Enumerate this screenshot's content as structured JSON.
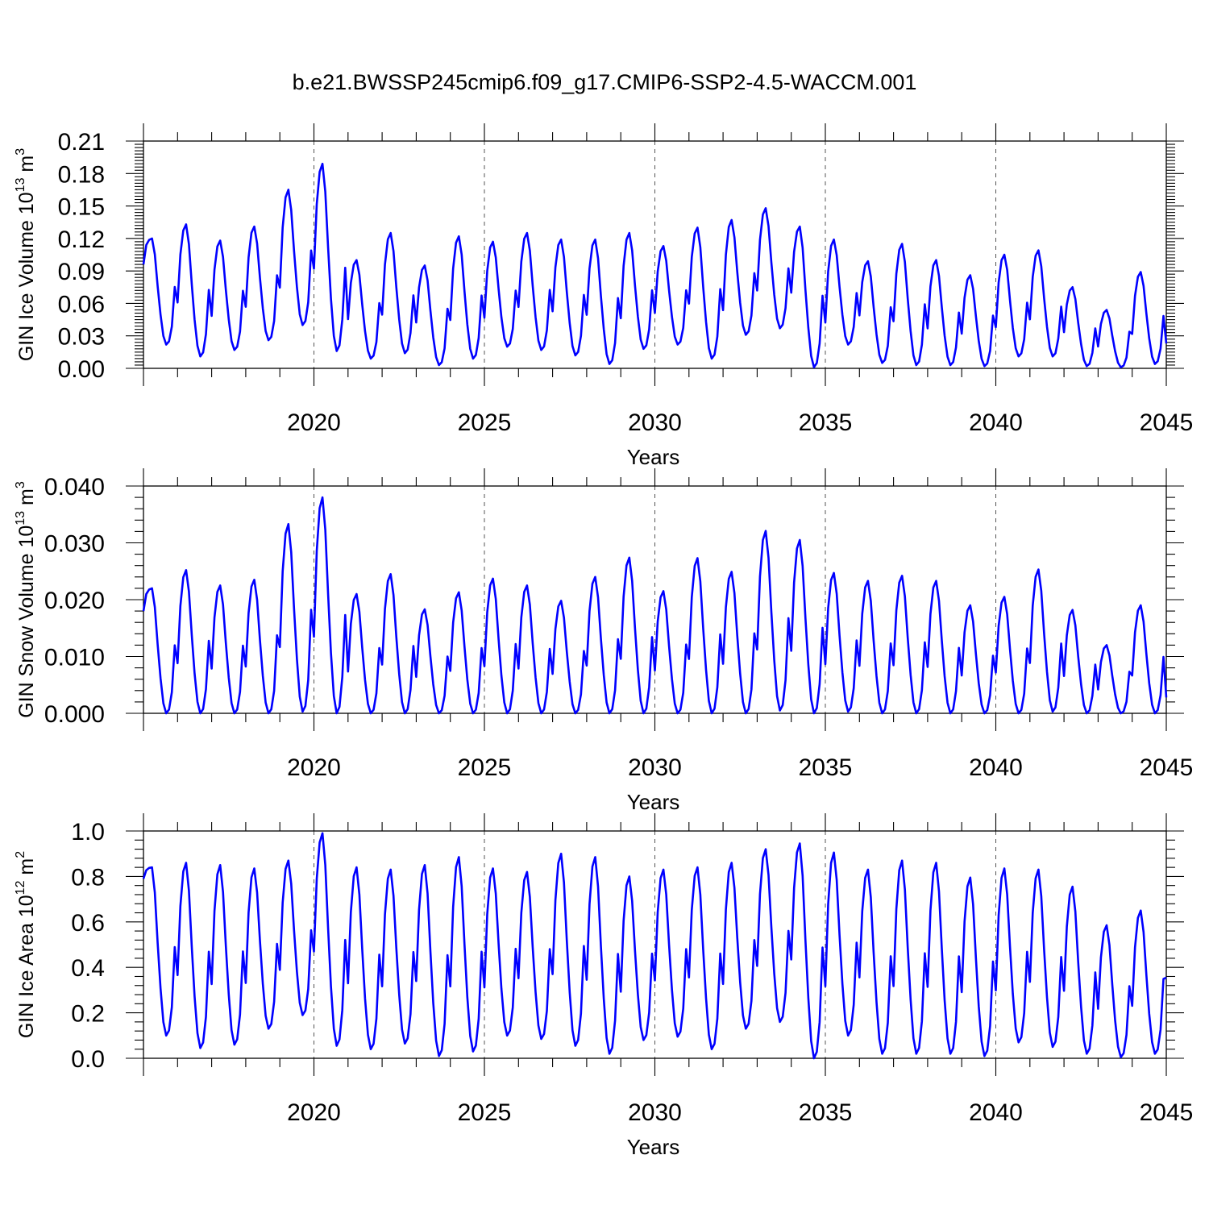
{
  "title": "b.e21.BWSSP245cmip6.f09_g17.CMIP6-SSP2-4.5-WACCM.001",
  "chart_data": [
    {
      "type": "line",
      "id": "ice-volume",
      "ylabel": "GIN Ice Volume 10",
      "ylabel_sup": "13",
      "ylabel_unit": " m",
      "ylabel_unit_sup": "3",
      "xlabel": "Years",
      "xlim": [
        2015,
        2045
      ],
      "ylim": [
        0,
        0.21
      ],
      "xticks": [
        2020,
        2025,
        2030,
        2035,
        2040,
        2045
      ],
      "yticks": [
        "0.00",
        "0.03",
        "0.06",
        "0.09",
        "0.12",
        "0.15",
        "0.18",
        "0.21"
      ],
      "series_color": "#0000ff",
      "annual_max": [
        0.12,
        0.133,
        0.118,
        0.131,
        0.165,
        0.189,
        0.1,
        0.125,
        0.095,
        0.122,
        0.117,
        0.125,
        0.119,
        0.119,
        0.125,
        0.113,
        0.13,
        0.137,
        0.148,
        0.131,
        0.119,
        0.099,
        0.115,
        0.1,
        0.086,
        0.105,
        0.109,
        0.075,
        0.054,
        0.089
      ],
      "annual_min": [
        0.022,
        0.011,
        0.017,
        0.026,
        0.04,
        0.016,
        0.009,
        0.014,
        0.003,
        0.009,
        0.02,
        0.017,
        0.012,
        0.004,
        0.018,
        0.022,
        0.009,
        0.031,
        0.037,
        0.001,
        0.022,
        0.005,
        0.003,
        0.003,
        0.002,
        0.011,
        0.011,
        0.002,
        0.001,
        0.004
      ],
      "start_value": 0.096,
      "end_value": 0.023
    },
    {
      "type": "line",
      "id": "snow-volume",
      "ylabel": "GIN Snow Volume 10",
      "ylabel_sup": "13",
      "ylabel_unit": " m",
      "ylabel_unit_sup": "3",
      "xlabel": "Years",
      "xlim": [
        2015,
        2045
      ],
      "ylim": [
        0,
        0.04
      ],
      "xticks": [
        2020,
        2025,
        2030,
        2035,
        2040,
        2045
      ],
      "yticks": [
        "0.000",
        "0.010",
        "0.020",
        "0.030",
        "0.040"
      ],
      "series_color": "#0000ff",
      "annual_max": [
        0.022,
        0.0252,
        0.0225,
        0.0235,
        0.0333,
        0.038,
        0.021,
        0.0245,
        0.0183,
        0.0213,
        0.0237,
        0.0225,
        0.0198,
        0.024,
        0.0274,
        0.0215,
        0.0273,
        0.0249,
        0.0321,
        0.0305,
        0.0247,
        0.0233,
        0.0242,
        0.0233,
        0.019,
        0.0205,
        0.0253,
        0.0182,
        0.012,
        0.019
      ],
      "annual_min": [
        0,
        0,
        0,
        0,
        0.0003,
        0,
        0,
        0,
        0,
        0,
        0,
        0,
        0,
        0,
        0,
        0,
        0,
        0,
        0.0005,
        0,
        0.0003,
        0,
        0,
        0,
        0,
        0,
        0.0003,
        0,
        0,
        0
      ],
      "start_value": 0.018,
      "end_value": 0.0028
    },
    {
      "type": "line",
      "id": "ice-area",
      "ylabel": "GIN Ice Area 10",
      "ylabel_sup": "12",
      "ylabel_unit": " m",
      "ylabel_unit_sup": "2",
      "xlabel": "Years",
      "xlim": [
        2015,
        2045
      ],
      "ylim": [
        0,
        1.0
      ],
      "xticks": [
        2020,
        2025,
        2030,
        2035,
        2040,
        2045
      ],
      "yticks": [
        "0.0",
        "0.2",
        "0.4",
        "0.6",
        "0.8",
        "1.0"
      ],
      "series_color": "#0000ff",
      "annual_max": [
        0.84,
        0.86,
        0.85,
        0.835,
        0.87,
        0.99,
        0.84,
        0.83,
        0.85,
        0.885,
        0.835,
        0.82,
        0.9,
        0.885,
        0.8,
        0.83,
        0.84,
        0.86,
        0.92,
        0.945,
        0.905,
        0.83,
        0.87,
        0.86,
        0.795,
        0.835,
        0.83,
        0.755,
        0.585,
        0.65
      ],
      "annual_min": [
        0.1,
        0.045,
        0.06,
        0.13,
        0.19,
        0.055,
        0.04,
        0.065,
        0.01,
        0.03,
        0.1,
        0.085,
        0.055,
        0.02,
        0.08,
        0.095,
        0.04,
        0.13,
        0.16,
        0.0,
        0.1,
        0.02,
        0.02,
        0.02,
        0.01,
        0.07,
        0.05,
        0.02,
        0.005,
        0.02
      ],
      "start_value": 0.79,
      "end_value": 0.355
    }
  ]
}
